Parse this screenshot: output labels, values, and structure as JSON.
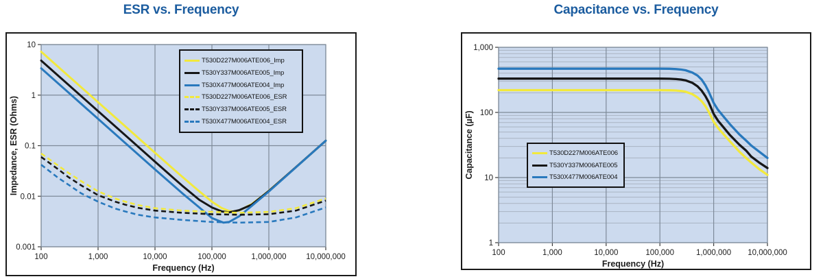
{
  "colors": {
    "title": "#1b5c9f",
    "plot_bg": "#ccdaee",
    "grid_major": "#7e8a99",
    "grid_minor": "#a9b3c2",
    "axis_tick": "#3a3a3a",
    "series_yellow": "#f2e93c",
    "series_black": "#161616",
    "series_blue": "#2979bd"
  },
  "chart_data": [
    {
      "type": "line",
      "title": "ESR vs. Frequency",
      "xlabel": "Frequency (Hz)",
      "ylabel": "Impedance, ESR (Ohms)",
      "x_scale": "log",
      "y_scale": "log",
      "xlim": [
        100,
        10000000
      ],
      "ylim": [
        0.001,
        10
      ],
      "x_tick_labels": [
        "100",
        "1,000",
        "10,000",
        "100,000",
        "1,000,000",
        "10,000,000"
      ],
      "y_tick_labels": [
        "10",
        "1",
        "0.1",
        "0.01",
        "0.001"
      ],
      "grid": "major-only",
      "legend_position": "upper-right-inside",
      "series": [
        {
          "label": "T530D227M006ATE006_Imp",
          "color": "#f2e93c",
          "dash": false,
          "width": 3,
          "points": [
            [
              100,
              7.23
            ],
            [
              300,
              2.41
            ],
            [
              1000,
              0.723
            ],
            [
              3000,
              0.241
            ],
            [
              10000,
              0.0723
            ],
            [
              30000,
              0.0243
            ],
            [
              60000,
              0.0125
            ],
            [
              100000,
              0.0078
            ],
            [
              150000,
              0.0058
            ],
            [
              200000,
              0.0051
            ],
            [
              240000,
              0.005
            ],
            [
              300000,
              0.0052
            ],
            [
              500000,
              0.007
            ],
            [
              700000,
              0.0093
            ],
            [
              1000000,
              0.0128
            ],
            [
              2000000,
              0.0252
            ],
            [
              3000000,
              0.0375
            ],
            [
              5000000,
              0.0626
            ],
            [
              10000000,
              0.1257
            ]
          ]
        },
        {
          "label": "T530Y337M006ATE005_Imp",
          "color": "#161616",
          "dash": false,
          "width": 3,
          "points": [
            [
              100,
              4.82
            ],
            [
              300,
              1.61
            ],
            [
              1000,
              0.482
            ],
            [
              3000,
              0.161
            ],
            [
              10000,
              0.0482
            ],
            [
              30000,
              0.0162
            ],
            [
              60000,
              0.0085
            ],
            [
              100000,
              0.006
            ],
            [
              150000,
              0.005
            ],
            [
              200000,
              0.0048
            ],
            [
              300000,
              0.0053
            ],
            [
              500000,
              0.0068
            ],
            [
              1000000,
              0.0127
            ],
            [
              3000000,
              0.0376
            ],
            [
              10000000,
              0.1256
            ]
          ]
        },
        {
          "label": "T530X477M006ATE004_Imp",
          "color": "#2979bd",
          "dash": false,
          "width": 3,
          "points": [
            [
              100,
              3.39
            ],
            [
              300,
              1.13
            ],
            [
              1000,
              0.339
            ],
            [
              3000,
              0.113
            ],
            [
              10000,
              0.0339
            ],
            [
              30000,
              0.0115
            ],
            [
              60000,
              0.006
            ],
            [
              100000,
              0.0037
            ],
            [
              160000,
              0.003
            ],
            [
              200000,
              0.0031
            ],
            [
              300000,
              0.004
            ],
            [
              500000,
              0.0064
            ],
            [
              1000000,
              0.0124
            ],
            [
              3000000,
              0.0374
            ],
            [
              10000000,
              0.1256
            ]
          ]
        },
        {
          "label": "T530D227M006ATE006_ESR",
          "color": "#f2e93c",
          "dash": true,
          "width": 2.6,
          "points": [
            [
              100,
              0.07
            ],
            [
              200,
              0.04
            ],
            [
              300,
              0.029
            ],
            [
              500,
              0.02
            ],
            [
              1000,
              0.0125
            ],
            [
              2000,
              0.009
            ],
            [
              3000,
              0.0078
            ],
            [
              5000,
              0.0067
            ],
            [
              10000,
              0.0058
            ],
            [
              30000,
              0.0052
            ],
            [
              100000,
              0.0049
            ],
            [
              300000,
              0.0047
            ],
            [
              1000000,
              0.0049
            ],
            [
              3000000,
              0.0058
            ],
            [
              10000000,
              0.009
            ]
          ]
        },
        {
          "label": "T530Y337M006ATE005_ESR",
          "color": "#161616",
          "dash": true,
          "width": 2.6,
          "points": [
            [
              100,
              0.06
            ],
            [
              200,
              0.034
            ],
            [
              300,
              0.024
            ],
            [
              500,
              0.0165
            ],
            [
              1000,
              0.0105
            ],
            [
              2000,
              0.0078
            ],
            [
              3000,
              0.0068
            ],
            [
              5000,
              0.0059
            ],
            [
              10000,
              0.0052
            ],
            [
              30000,
              0.0047
            ],
            [
              100000,
              0.0044
            ],
            [
              300000,
              0.0043
            ],
            [
              1000000,
              0.0044
            ],
            [
              3000000,
              0.0052
            ],
            [
              10000000,
              0.0082
            ]
          ]
        },
        {
          "label": "T530X477M006ATE004_ESR",
          "color": "#2979bd",
          "dash": true,
          "width": 2.6,
          "points": [
            [
              100,
              0.042
            ],
            [
              200,
              0.023
            ],
            [
              300,
              0.017
            ],
            [
              500,
              0.0115
            ],
            [
              1000,
              0.0078
            ],
            [
              2000,
              0.0057
            ],
            [
              3000,
              0.005
            ],
            [
              5000,
              0.0043
            ],
            [
              10000,
              0.0038
            ],
            [
              30000,
              0.0034
            ],
            [
              100000,
              0.0031
            ],
            [
              300000,
              0.003
            ],
            [
              1000000,
              0.0031
            ],
            [
              3000000,
              0.0038
            ],
            [
              10000000,
              0.006
            ]
          ]
        }
      ]
    },
    {
      "type": "line",
      "title": "Capacitance vs. Frequency",
      "xlabel": "Frequency (Hz)",
      "ylabel": "Capacitance (µF)",
      "x_scale": "log",
      "y_scale": "log",
      "xlim": [
        100,
        10000000
      ],
      "ylim": [
        1,
        1000
      ],
      "x_tick_labels": [
        "100",
        "1,000",
        "10,000",
        "100,000",
        "1,000,000",
        "10,000,000"
      ],
      "y_tick_labels": [
        "1,000",
        "100",
        "10",
        "1"
      ],
      "grid": "major-plus-y-minor",
      "legend_position": "middle-left-inside",
      "series": [
        {
          "label": "T530D227M006ATE006",
          "color": "#f2e93c",
          "dash": false,
          "width": 3.3,
          "points": [
            [
              100,
              220
            ],
            [
              10000,
              220
            ],
            [
              50000,
              220
            ],
            [
              100000,
              220
            ],
            [
              150000,
              219
            ],
            [
              200000,
              217
            ],
            [
              250000,
              213
            ],
            [
              300000,
              208
            ],
            [
              400000,
              191
            ],
            [
              500000,
              170
            ],
            [
              600000,
              148
            ],
            [
              700000,
              125
            ],
            [
              800000,
              104
            ],
            [
              1000000,
              72
            ],
            [
              1200000,
              58
            ],
            [
              1500000,
              47
            ],
            [
              2000000,
              36
            ],
            [
              2500000,
              29.5
            ],
            [
              3000000,
              25
            ],
            [
              4000000,
              20
            ],
            [
              5000000,
              17
            ],
            [
              7000000,
              13.5
            ],
            [
              10000000,
              11
            ]
          ]
        },
        {
          "label": "T530Y337M006ATE005",
          "color": "#161616",
          "dash": false,
          "width": 3.3,
          "points": [
            [
              100,
              330
            ],
            [
              10000,
              330
            ],
            [
              50000,
              330
            ],
            [
              100000,
              330
            ],
            [
              150000,
              329
            ],
            [
              200000,
              325
            ],
            [
              250000,
              319
            ],
            [
              300000,
              311
            ],
            [
              400000,
              285
            ],
            [
              500000,
              252
            ],
            [
              600000,
              215
            ],
            [
              700000,
              178
            ],
            [
              800000,
              146
            ],
            [
              1000000,
              95
            ],
            [
              1200000,
              75
            ],
            [
              1500000,
              60
            ],
            [
              2000000,
              45
            ],
            [
              3000000,
              32
            ],
            [
              4000000,
              26
            ],
            [
              5000000,
              21
            ],
            [
              7000000,
              17
            ],
            [
              10000000,
              14
            ]
          ]
        },
        {
          "label": "T530X477M006ATE004",
          "color": "#2979bd",
          "dash": false,
          "width": 3.3,
          "points": [
            [
              100,
              470
            ],
            [
              10000,
              470
            ],
            [
              50000,
              470
            ],
            [
              100000,
              470
            ],
            [
              150000,
              468
            ],
            [
              200000,
              463
            ],
            [
              250000,
              455
            ],
            [
              300000,
              444
            ],
            [
              400000,
              410
            ],
            [
              500000,
              368
            ],
            [
              600000,
              318
            ],
            [
              700000,
              262
            ],
            [
              800000,
              212
            ],
            [
              1000000,
              140
            ],
            [
              1200000,
              110
            ],
            [
              1500000,
              88
            ],
            [
              2000000,
              66
            ],
            [
              3000000,
              46
            ],
            [
              4000000,
              37
            ],
            [
              5000000,
              31
            ],
            [
              7000000,
              25
            ],
            [
              10000000,
              20
            ]
          ]
        }
      ]
    }
  ]
}
